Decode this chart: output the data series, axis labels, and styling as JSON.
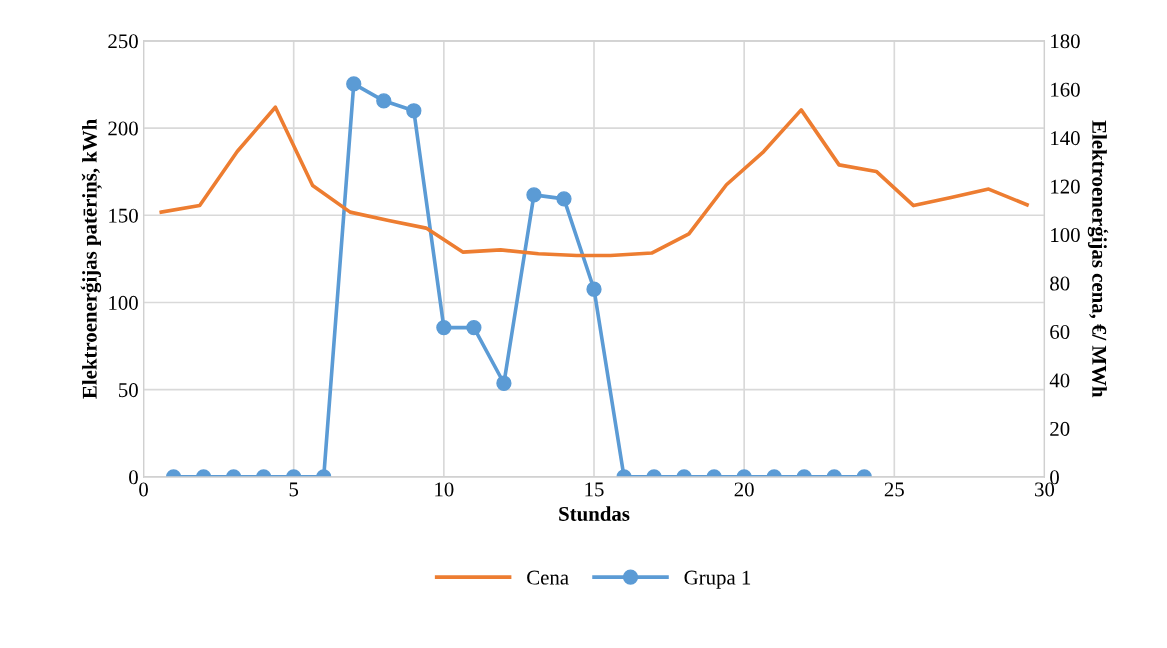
{
  "chart_data": {
    "type": "line",
    "xlabel": "Stundas",
    "ylabel": "Elektroenerģijas patēriņš, kWh",
    "y2label": "Elektroenerģijas cena, €/ MWh",
    "xlim": [
      0,
      30
    ],
    "xticks": [
      0,
      5,
      10,
      15,
      20,
      25,
      30
    ],
    "ylim": [
      0,
      250
    ],
    "yticks": [
      0,
      50,
      100,
      150,
      200,
      250
    ],
    "y2lim": [
      0,
      180
    ],
    "y2ticks": [
      0,
      20,
      40,
      60,
      80,
      100,
      120,
      140,
      160,
      180
    ],
    "grid": true,
    "legend": "bottom",
    "series": [
      {
        "name": "Cena",
        "color": "#ed7d31",
        "axis": "y2",
        "marker": "none",
        "x": [
          0.59,
          1.87,
          3.12,
          4.39,
          5.63,
          6.88,
          8.16,
          9.41,
          10.63,
          11.89,
          13.15,
          14.42,
          15.55,
          16.92,
          18.16,
          19.41,
          20.65,
          21.9,
          23.16,
          24.4,
          25.64,
          26.89,
          28.14,
          29.42
        ],
        "values": [
          109.3,
          112.0,
          134.3,
          152.6,
          120.3,
          109.3,
          105.8,
          102.7,
          92.8,
          93.7,
          92.1,
          91.4,
          91.4,
          92.4,
          100.3,
          120.6,
          134.3,
          151.5,
          128.8,
          126.1,
          112.0,
          115.3,
          118.8,
          112.3
        ]
      },
      {
        "name": "Grupa 1",
        "color": "#5b9bd5",
        "marker": "circle",
        "x": [
          1,
          2,
          3,
          4,
          5,
          6,
          7,
          8,
          9,
          10,
          11,
          12,
          13,
          14,
          15,
          16,
          17,
          18,
          19,
          20,
          21,
          22,
          23,
          24
        ],
        "values": [
          0,
          0,
          0,
          0,
          0,
          0,
          225.3,
          215.6,
          209.9,
          85.6,
          85.6,
          53.7,
          161.7,
          159.4,
          107.6,
          0,
          0,
          0,
          0,
          0,
          0,
          0,
          0,
          0
        ]
      }
    ]
  }
}
